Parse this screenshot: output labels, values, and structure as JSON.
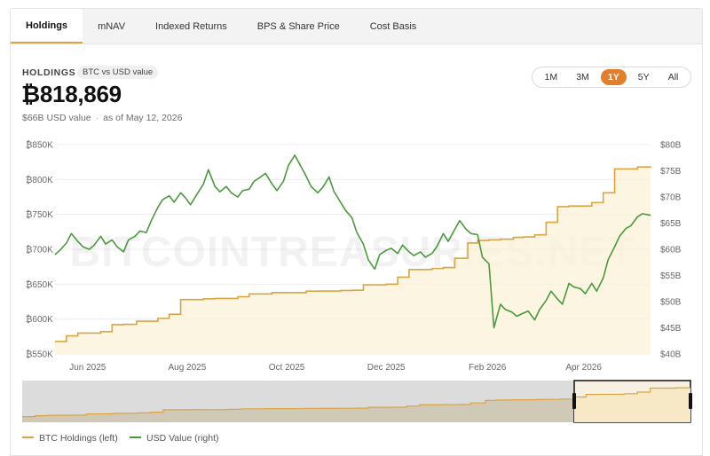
{
  "tabs": [
    {
      "label": "Holdings",
      "active": true
    },
    {
      "label": "mNAV",
      "active": false
    },
    {
      "label": "Indexed Returns",
      "active": false
    },
    {
      "label": "BPS & Share Price",
      "active": false
    },
    {
      "label": "Cost Basis",
      "active": false
    }
  ],
  "header": {
    "label": "HOLDINGS",
    "badge": "BTC vs USD value",
    "value": "₿818,869",
    "usd_value": "$66B USD value",
    "as_of": "as of May 12, 2026"
  },
  "range_buttons": [
    {
      "label": "1M",
      "active": false
    },
    {
      "label": "3M",
      "active": false
    },
    {
      "label": "1Y",
      "active": true
    },
    {
      "label": "5Y",
      "active": false
    },
    {
      "label": "All",
      "active": false
    }
  ],
  "watermark": "BITCOINTREASURIES.NET",
  "colors": {
    "btc": "#d9a441",
    "usd": "#4a9a3c",
    "accent": "#e07f2c"
  },
  "chart_data": {
    "type": "line",
    "left_axis": {
      "ticks": [
        "₿550K",
        "₿600K",
        "₿650K",
        "₿700K",
        "₿750K",
        "₿800K",
        "₿850K"
      ],
      "range": [
        550000,
        850000
      ]
    },
    "right_axis": {
      "ticks": [
        "$40B",
        "$45B",
        "$50B",
        "$55B",
        "$60B",
        "$65B",
        "$70B",
        "$75B",
        "$80B"
      ],
      "range": [
        40,
        80
      ]
    },
    "x_ticks": [
      {
        "label": "Jun 2025",
        "date": "2025-06-01"
      },
      {
        "label": "Aug 2025",
        "date": "2025-08-01"
      },
      {
        "label": "Oct 2025",
        "date": "2025-10-01"
      },
      {
        "label": "Dec 2025",
        "date": "2025-12-01"
      },
      {
        "label": "Feb 2026",
        "date": "2026-02-01"
      },
      {
        "label": "Apr 2026",
        "date": "2026-04-01"
      }
    ],
    "x_range": [
      "2025-05-12",
      "2026-05-12"
    ],
    "grid": true,
    "legend_position": "bottom-left",
    "series": [
      {
        "name": "BTC Holdings (left)",
        "axis": "left",
        "style": "step-area",
        "points": [
          [
            "2025-05-12",
            568000
          ],
          [
            "2025-05-19",
            576000
          ],
          [
            "2025-05-26",
            580000
          ],
          [
            "2025-06-09",
            582000
          ],
          [
            "2025-06-16",
            592000
          ],
          [
            "2025-06-23",
            592500
          ],
          [
            "2025-07-01",
            597000
          ],
          [
            "2025-07-14",
            601000
          ],
          [
            "2025-07-21",
            607000
          ],
          [
            "2025-07-28",
            628000
          ],
          [
            "2025-08-11",
            629000
          ],
          [
            "2025-08-18",
            629500
          ],
          [
            "2025-09-01",
            632000
          ],
          [
            "2025-09-08",
            636000
          ],
          [
            "2025-09-22",
            638000
          ],
          [
            "2025-10-13",
            640000
          ],
          [
            "2025-10-20",
            640200
          ],
          [
            "2025-11-03",
            641000
          ],
          [
            "2025-11-10",
            641300
          ],
          [
            "2025-11-17",
            649000
          ],
          [
            "2025-12-01",
            650000
          ],
          [
            "2025-12-08",
            660000
          ],
          [
            "2025-12-15",
            671000
          ],
          [
            "2025-12-29",
            672500
          ],
          [
            "2026-01-05",
            673800
          ],
          [
            "2026-01-12",
            687000
          ],
          [
            "2026-01-20",
            709000
          ],
          [
            "2026-01-26",
            712600
          ],
          [
            "2026-02-02",
            713500
          ],
          [
            "2026-02-09",
            714600
          ],
          [
            "2026-02-17",
            717100
          ],
          [
            "2026-02-23",
            717700
          ],
          [
            "2026-03-02",
            720700
          ],
          [
            "2026-03-09",
            738700
          ],
          [
            "2026-03-16",
            761100
          ],
          [
            "2026-03-23",
            762100
          ],
          [
            "2026-04-06",
            766900
          ],
          [
            "2026-04-13",
            780900
          ],
          [
            "2026-04-20",
            815100
          ],
          [
            "2026-05-04",
            818000
          ],
          [
            "2026-05-12",
            818869
          ]
        ]
      },
      {
        "name": "USD Value (right)",
        "axis": "right",
        "style": "line",
        "points": [
          [
            "2025-05-12",
            59.0
          ],
          [
            "2025-05-15",
            59.8
          ],
          [
            "2025-05-19",
            61.2
          ],
          [
            "2025-05-22",
            63.0
          ],
          [
            "2025-05-26",
            61.5
          ],
          [
            "2025-05-29",
            60.5
          ],
          [
            "2025-06-02",
            60.0
          ],
          [
            "2025-06-05",
            60.8
          ],
          [
            "2025-06-09",
            62.5
          ],
          [
            "2025-06-12",
            61.0
          ],
          [
            "2025-06-16",
            61.8
          ],
          [
            "2025-06-19",
            60.5
          ],
          [
            "2025-06-23",
            59.5
          ],
          [
            "2025-06-26",
            61.8
          ],
          [
            "2025-06-30",
            62.5
          ],
          [
            "2025-07-03",
            63.5
          ],
          [
            "2025-07-07",
            63.2
          ],
          [
            "2025-07-10",
            65.5
          ],
          [
            "2025-07-14",
            68.0
          ],
          [
            "2025-07-17",
            69.5
          ],
          [
            "2025-07-21",
            70.2
          ],
          [
            "2025-07-24",
            69.0
          ],
          [
            "2025-07-28",
            70.8
          ],
          [
            "2025-07-31",
            69.8
          ],
          [
            "2025-08-03",
            68.5
          ],
          [
            "2025-08-07",
            70.5
          ],
          [
            "2025-08-11",
            72.5
          ],
          [
            "2025-08-14",
            75.2
          ],
          [
            "2025-08-18",
            72.0
          ],
          [
            "2025-08-21",
            71.0
          ],
          [
            "2025-08-25",
            72.0
          ],
          [
            "2025-08-28",
            70.8
          ],
          [
            "2025-09-01",
            70.0
          ],
          [
            "2025-09-04",
            71.2
          ],
          [
            "2025-09-08",
            71.5
          ],
          [
            "2025-09-11",
            73.0
          ],
          [
            "2025-09-15",
            73.8
          ],
          [
            "2025-09-18",
            74.5
          ],
          [
            "2025-09-22",
            72.5
          ],
          [
            "2025-09-25",
            71.2
          ],
          [
            "2025-09-29",
            73.0
          ],
          [
            "2025-10-02",
            76.0
          ],
          [
            "2025-10-06",
            78.0
          ],
          [
            "2025-10-09",
            76.2
          ],
          [
            "2025-10-12",
            74.5
          ],
          [
            "2025-10-16",
            72.0
          ],
          [
            "2025-10-20",
            70.8
          ],
          [
            "2025-10-23",
            71.8
          ],
          [
            "2025-10-27",
            73.8
          ],
          [
            "2025-10-30",
            71.0
          ],
          [
            "2025-11-03",
            69.0
          ],
          [
            "2025-11-06",
            67.5
          ],
          [
            "2025-11-10",
            66.0
          ],
          [
            "2025-11-13",
            63.2
          ],
          [
            "2025-11-17",
            61.0
          ],
          [
            "2025-11-20",
            58.0
          ],
          [
            "2025-11-24",
            56.2
          ],
          [
            "2025-11-27",
            59.0
          ],
          [
            "2025-12-01",
            59.8
          ],
          [
            "2025-12-04",
            60.2
          ],
          [
            "2025-12-08",
            59.2
          ],
          [
            "2025-12-11",
            60.8
          ],
          [
            "2025-12-15",
            59.5
          ],
          [
            "2025-12-18",
            58.8
          ],
          [
            "2025-12-22",
            59.5
          ],
          [
            "2025-12-25",
            58.5
          ],
          [
            "2025-12-29",
            59.2
          ],
          [
            "2026-01-01",
            60.5
          ],
          [
            "2026-01-05",
            63.0
          ],
          [
            "2026-01-08",
            61.5
          ],
          [
            "2026-01-12",
            63.8
          ],
          [
            "2026-01-15",
            65.5
          ],
          [
            "2026-01-19",
            63.8
          ],
          [
            "2026-01-22",
            63.0
          ],
          [
            "2026-01-26",
            62.8
          ],
          [
            "2026-01-29",
            58.5
          ],
          [
            "2026-02-02",
            57.2
          ],
          [
            "2026-02-05",
            45.0
          ],
          [
            "2026-02-09",
            49.5
          ],
          [
            "2026-02-12",
            48.5
          ],
          [
            "2026-02-16",
            48.0
          ],
          [
            "2026-02-19",
            47.2
          ],
          [
            "2026-02-23",
            47.8
          ],
          [
            "2026-02-26",
            48.2
          ],
          [
            "2026-03-02",
            46.5
          ],
          [
            "2026-03-05",
            48.5
          ],
          [
            "2026-03-09",
            50.2
          ],
          [
            "2026-03-12",
            52.0
          ],
          [
            "2026-03-16",
            50.5
          ],
          [
            "2026-03-19",
            49.5
          ],
          [
            "2026-03-23",
            53.5
          ],
          [
            "2026-03-26",
            52.8
          ],
          [
            "2026-03-30",
            52.5
          ],
          [
            "2026-04-02",
            51.5
          ],
          [
            "2026-04-06",
            53.5
          ],
          [
            "2026-04-09",
            52.0
          ],
          [
            "2026-04-13",
            54.5
          ],
          [
            "2026-04-16",
            58.0
          ],
          [
            "2026-04-20",
            60.5
          ],
          [
            "2026-04-23",
            62.5
          ],
          [
            "2026-04-27",
            64.0
          ],
          [
            "2026-04-30",
            64.5
          ],
          [
            "2026-05-04",
            66.2
          ],
          [
            "2026-05-07",
            66.8
          ],
          [
            "2026-05-12",
            66.5
          ]
        ]
      }
    ]
  }
}
